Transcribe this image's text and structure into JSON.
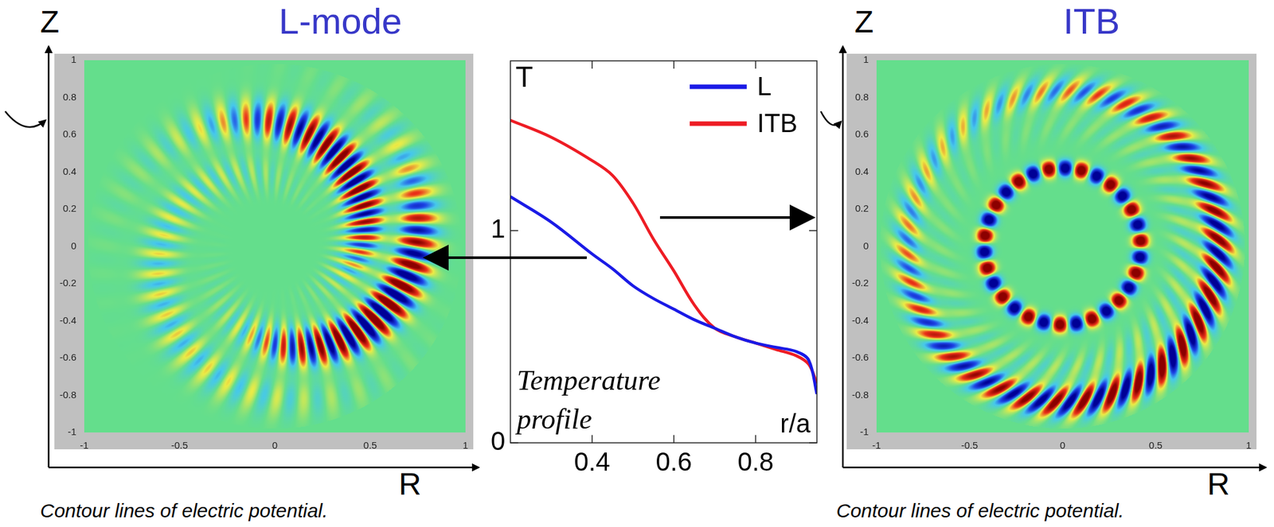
{
  "panels": [
    {
      "title": "L-mode",
      "xlabel": "R",
      "ylabel": "Z",
      "xlim": [
        -1,
        1
      ],
      "ylim": [
        -1,
        1
      ],
      "xticks": [
        -1,
        -0.5,
        0,
        0.5,
        1
      ],
      "yticks": [
        -1,
        -0.8,
        -0.6,
        -0.4,
        -0.2,
        0,
        0.2,
        0.4,
        0.6,
        0.8,
        1
      ],
      "caption": "Contour lines of electric potential."
    },
    {
      "title": "ITB",
      "xlabel": "R",
      "ylabel": "Z",
      "xlim": [
        -1,
        1
      ],
      "ylim": [
        -1,
        1
      ],
      "xticks": [
        -1,
        -0.5,
        0,
        0.5,
        1
      ],
      "yticks": [
        -1,
        -0.8,
        -0.6,
        -0.4,
        -0.2,
        0,
        0.2,
        0.4,
        0.6,
        0.8,
        1
      ],
      "caption": "Contour lines of electric potential."
    }
  ],
  "chart_data": {
    "type": "line",
    "ylabel": "T",
    "xlabel": "r/a",
    "annotation": "Temperature profile",
    "x": [
      0.2,
      0.3,
      0.4,
      0.45,
      0.5,
      0.55,
      0.6,
      0.65,
      0.7,
      0.75,
      0.8,
      0.85,
      0.9,
      0.93,
      0.95
    ],
    "series": [
      {
        "name": "L",
        "color": "#1a1ae6",
        "values": [
          1.16,
          1.04,
          0.89,
          0.82,
          0.74,
          0.68,
          0.63,
          0.58,
          0.54,
          0.5,
          0.47,
          0.45,
          0.43,
          0.39,
          0.23
        ]
      },
      {
        "name": "ITB",
        "color": "#ee1c24",
        "values": [
          1.52,
          1.44,
          1.33,
          1.26,
          1.13,
          0.96,
          0.81,
          0.65,
          0.54,
          0.5,
          0.47,
          0.44,
          0.41,
          0.37,
          0.28
        ]
      }
    ],
    "xlim": [
      0.2,
      0.95
    ],
    "ylim": [
      0,
      1.8
    ],
    "xticks": [
      0.4,
      0.6,
      0.8
    ],
    "yticks": [
      0,
      1
    ],
    "legend": "upper right",
    "grid": false
  }
}
